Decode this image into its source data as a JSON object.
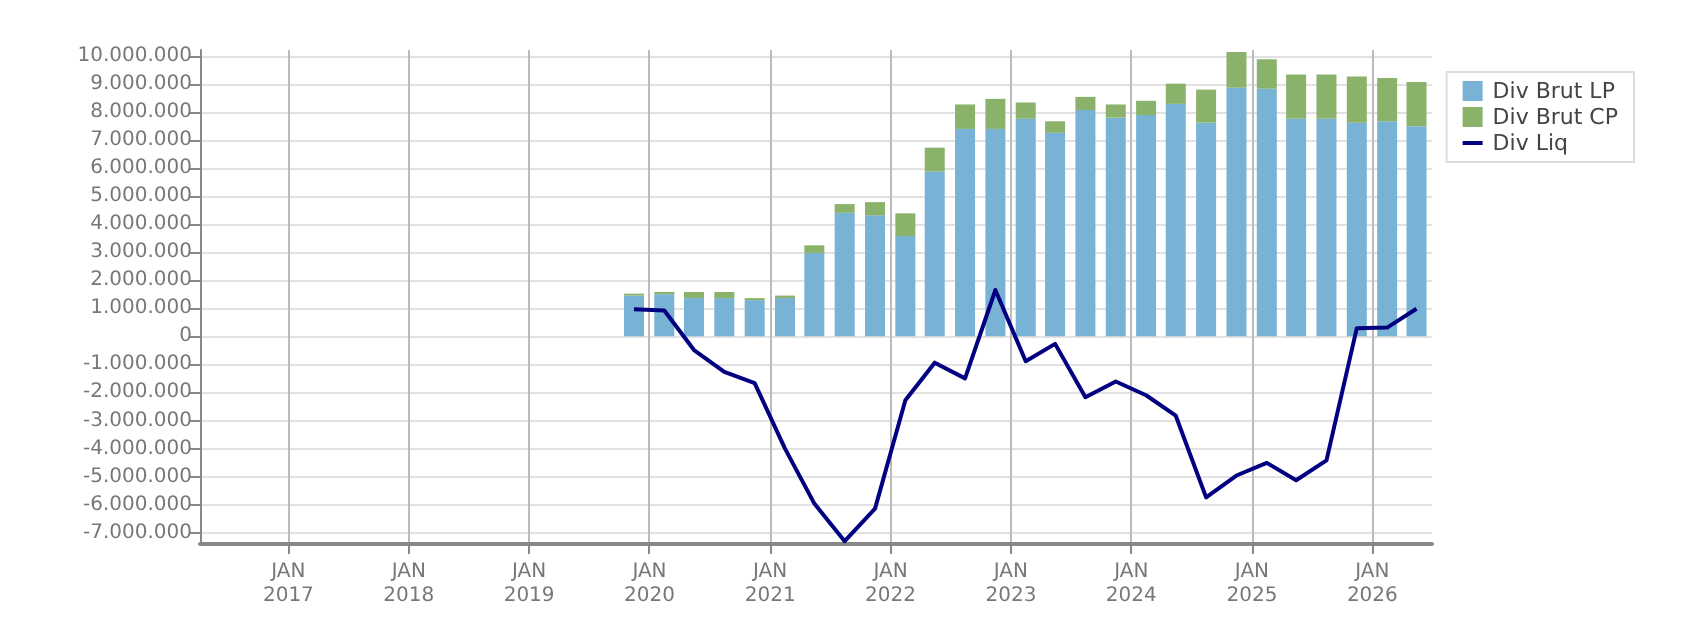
{
  "chart_data": {
    "type": "bar",
    "stacked": true,
    "x": [
      "2019-11-15",
      "2020-02-15",
      "2020-05-15",
      "2020-08-15",
      "2020-11-15",
      "2021-02-15",
      "2021-05-15",
      "2021-08-15",
      "2021-11-15",
      "2022-02-15",
      "2022-05-15",
      "2022-08-15",
      "2022-11-15",
      "2023-02-15",
      "2023-05-15",
      "2023-08-15",
      "2023-11-15",
      "2024-02-15",
      "2024-05-15",
      "2024-08-15",
      "2024-11-15",
      "2025-02-15",
      "2025-05-15",
      "2025-08-15",
      "2025-11-15",
      "2026-02-15",
      "2026-05-15"
    ],
    "series": [
      {
        "name": "Div Brut LP",
        "color": "#78b2d4",
        "values": [
          1450000,
          1500000,
          1360000,
          1360000,
          1290000,
          1360000,
          2970000,
          4400000,
          4310000,
          3570000,
          5870000,
          7390000,
          7390000,
          7750000,
          7250000,
          8060000,
          7790000,
          7880000,
          8280000,
          7610000,
          8860000,
          8820000,
          7750000,
          7750000,
          7610000,
          7660000,
          7480000
        ]
      },
      {
        "name": "Div Brut CP",
        "color": "#8ab26a",
        "values": [
          70000,
          80000,
          220000,
          220000,
          70000,
          90000,
          270000,
          310000,
          470000,
          810000,
          850000,
          870000,
          1070000,
          580000,
          410000,
          470000,
          470000,
          510000,
          720000,
          1180000,
          1270000,
          1050000,
          1580000,
          1580000,
          1650000,
          1540000,
          1580000
        ]
      },
      {
        "name": "Div Liq",
        "type": "line",
        "color": "#000080",
        "values": [
          960000,
          920000,
          -490000,
          -1270000,
          -1670000,
          -4000000,
          -5960000,
          -7300000,
          -6140000,
          -2280000,
          -940000,
          -1500000,
          1650000,
          -890000,
          -270000,
          -2170000,
          -1610000,
          -2100000,
          -2830000,
          -5740000,
          -4960000,
          -4510000,
          -5130000,
          -4420000,
          290000,
          310000,
          980000
        ]
      }
    ],
    "xlim": [
      "2016-04-08",
      "2026-07-01"
    ],
    "xticks": [
      {
        "value": "2017-01-01",
        "label": "JAN\n2017"
      },
      {
        "value": "2018-01-01",
        "label": "JAN\n2018"
      },
      {
        "value": "2019-01-01",
        "label": "JAN\n2019"
      },
      {
        "value": "2020-01-01",
        "label": "JAN\n2020"
      },
      {
        "value": "2021-01-01",
        "label": "JAN\n2021"
      },
      {
        "value": "2022-01-01",
        "label": "JAN\n2022"
      },
      {
        "value": "2023-01-01",
        "label": "JAN\n2023"
      },
      {
        "value": "2024-01-01",
        "label": "JAN\n2024"
      },
      {
        "value": "2025-01-01",
        "label": "JAN\n2025"
      },
      {
        "value": "2026-01-01",
        "label": "JAN\n2026"
      }
    ],
    "ylim": [
      -7400000,
      10200000
    ],
    "yticks": [
      {
        "value": -7000000,
        "label": "-7.000.000"
      },
      {
        "value": -6000000,
        "label": "-6.000.000"
      },
      {
        "value": -5000000,
        "label": "-5.000.000"
      },
      {
        "value": -4000000,
        "label": "-4.000.000"
      },
      {
        "value": -3000000,
        "label": "-3.000.000"
      },
      {
        "value": -2000000,
        "label": "-2.000.000"
      },
      {
        "value": -1000000,
        "label": "-1.000.000"
      },
      {
        "value": 0,
        "label": "0"
      },
      {
        "value": 1000000,
        "label": "1.000.000"
      },
      {
        "value": 2000000,
        "label": "2.000.000"
      },
      {
        "value": 3000000,
        "label": "3.000.000"
      },
      {
        "value": 4000000,
        "label": "4.000.000"
      },
      {
        "value": 5000000,
        "label": "5.000.000"
      },
      {
        "value": 6000000,
        "label": "6.000.000"
      },
      {
        "value": 7000000,
        "label": "7.000.000"
      },
      {
        "value": 8000000,
        "label": "8.000.000"
      },
      {
        "value": 9000000,
        "label": "9.000.000"
      },
      {
        "value": 10000000,
        "label": "10.000.000"
      }
    ],
    "grid": true,
    "legend": "top right",
    "marker": "none"
  }
}
